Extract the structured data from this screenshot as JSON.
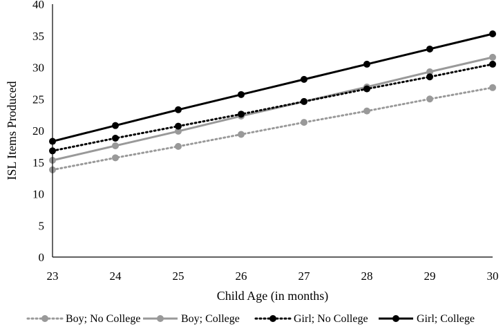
{
  "chart_data": {
    "type": "line",
    "title": "",
    "xlabel": "Child Age (in months)",
    "ylabel": "ISL Items Produced",
    "x": [
      23,
      24,
      25,
      26,
      27,
      28,
      29,
      30
    ],
    "xlim": [
      23,
      30
    ],
    "ylim": [
      0,
      40
    ],
    "yticks": [
      0,
      5,
      10,
      15,
      20,
      25,
      30,
      35,
      40
    ],
    "grid": false,
    "legend_position": "bottom",
    "series": [
      {
        "name": "Boy; No College",
        "color": "#999999",
        "dash": "dotted",
        "values": [
          13.8,
          15.7,
          17.5,
          19.4,
          21.3,
          23.1,
          25.0,
          26.8
        ]
      },
      {
        "name": "Boy; College",
        "color": "#999999",
        "dash": "solid",
        "values": [
          15.3,
          17.6,
          19.9,
          22.3,
          24.6,
          26.9,
          29.3,
          31.6
        ]
      },
      {
        "name": "Girl; No College",
        "color": "#000000",
        "dash": "dotted",
        "values": [
          16.8,
          18.8,
          20.7,
          22.6,
          24.6,
          26.6,
          28.5,
          30.5
        ]
      },
      {
        "name": "Girl; College",
        "color": "#000000",
        "dash": "solid",
        "values": [
          18.3,
          20.8,
          23.3,
          25.7,
          28.1,
          30.5,
          32.9,
          35.3
        ]
      }
    ]
  }
}
